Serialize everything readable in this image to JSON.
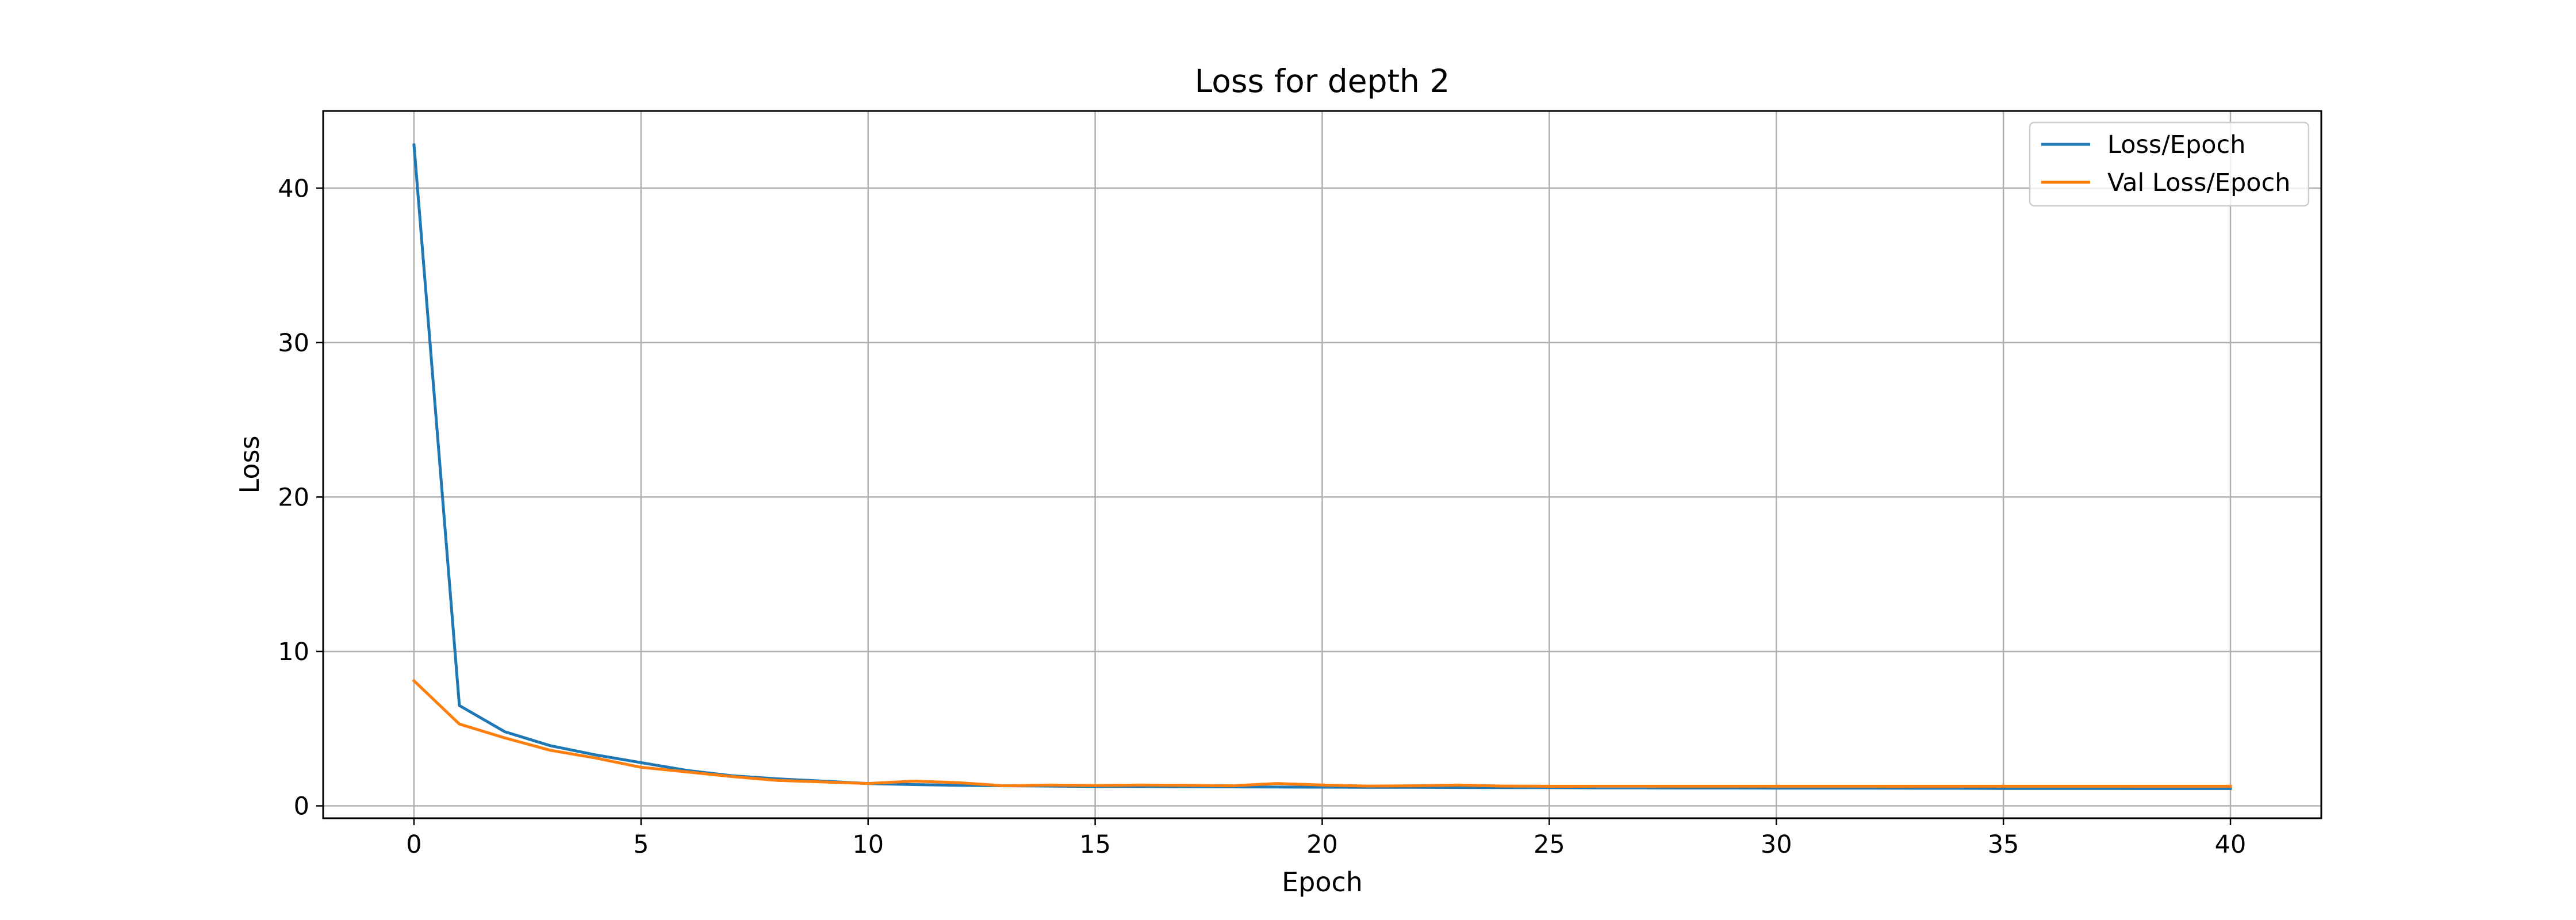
{
  "chart_data": {
    "type": "line",
    "title": "Loss for depth 2",
    "xlabel": "Epoch",
    "ylabel": "Loss",
    "xlim": [
      -2,
      42
    ],
    "ylim": [
      -0.8,
      45
    ],
    "xticks": [
      0,
      5,
      10,
      15,
      20,
      25,
      30,
      35,
      40
    ],
    "yticks": [
      0,
      10,
      20,
      30,
      40
    ],
    "grid": true,
    "legend_position": "top-right",
    "x": [
      0,
      1,
      2,
      3,
      4,
      5,
      6,
      7,
      8,
      9,
      10,
      11,
      12,
      13,
      14,
      15,
      16,
      17,
      18,
      19,
      20,
      21,
      22,
      23,
      24,
      25,
      26,
      27,
      28,
      29,
      30,
      31,
      32,
      33,
      34,
      35,
      36,
      37,
      38,
      39,
      40
    ],
    "series": [
      {
        "name": "Loss/Epoch",
        "color": "#1f77b4",
        "values": [
          42.8,
          6.5,
          4.8,
          3.9,
          3.3,
          2.8,
          2.3,
          1.95,
          1.75,
          1.6,
          1.45,
          1.38,
          1.33,
          1.3,
          1.28,
          1.26,
          1.25,
          1.24,
          1.23,
          1.22,
          1.21,
          1.2,
          1.2,
          1.19,
          1.18,
          1.18,
          1.17,
          1.17,
          1.16,
          1.16,
          1.15,
          1.15,
          1.15,
          1.14,
          1.14,
          1.13,
          1.13,
          1.13,
          1.12,
          1.12,
          1.12
        ]
      },
      {
        "name": "Val Loss/Epoch",
        "color": "#ff7f0e",
        "values": [
          8.1,
          5.3,
          4.4,
          3.6,
          3.1,
          2.5,
          2.2,
          1.9,
          1.65,
          1.55,
          1.45,
          1.6,
          1.5,
          1.3,
          1.35,
          1.32,
          1.35,
          1.33,
          1.3,
          1.45,
          1.35,
          1.28,
          1.3,
          1.35,
          1.28,
          1.27,
          1.27,
          1.27,
          1.27,
          1.27,
          1.27,
          1.27,
          1.27,
          1.27,
          1.27,
          1.27,
          1.27,
          1.27,
          1.27,
          1.27,
          1.27
        ]
      }
    ]
  }
}
